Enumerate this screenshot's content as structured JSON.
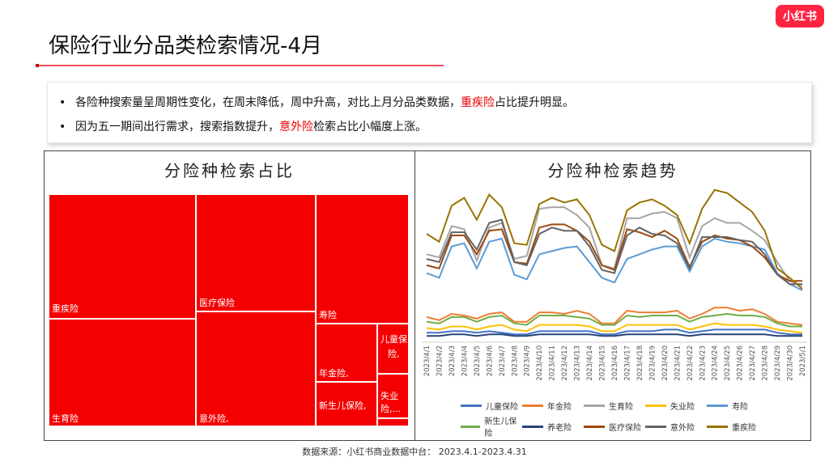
{
  "title": "保险行业分品类检索情况-4月",
  "logo": "小红书",
  "bullets": {
    "b1": {
      "pre": "各险种搜索量呈周期性变化，在周末降低，周中升高，对比上月分品类数据，",
      "hl": "重疾险",
      "post": "占比提升明显。"
    },
    "b2": {
      "pre": "因为五一期间出行需求，搜索指数提升，",
      "hl": "意外险",
      "post": "检索占比小幅度上涨。"
    }
  },
  "treemap": {
    "title": "分险种检索占比",
    "labels": {
      "zhongji": "重疾险",
      "shengyu": "生育险",
      "yiliao": "医疗保险",
      "yiwai": "意外险,",
      "shou": "寿险",
      "nianjin": "年金险,",
      "xinshenger": "新生儿保险,",
      "ertong1": "儿童保",
      "ertong2": "险,",
      "shiye1": "失业",
      "shiye2": "险,..."
    }
  },
  "chart_data": {
    "type": "line",
    "title": "分险种检索趋势",
    "x": [
      "2023/4/1",
      "2023/4/2",
      "2023/4/3",
      "2023/4/4",
      "2023/4/5",
      "2023/4/6",
      "2023/4/7",
      "2023/4/8",
      "2023/4/9",
      "2023/4/10",
      "2023/4/11",
      "2023/4/12",
      "2023/4/13",
      "2023/4/14",
      "2023/4/15",
      "2023/4/16",
      "2023/4/17",
      "2023/4/18",
      "2023/4/19",
      "2023/4/20",
      "2023/4/21",
      "2023/4/22",
      "2023/4/23",
      "2023/4/24",
      "2023/4/25",
      "2023/4/26",
      "2023/4/27",
      "2023/4/28",
      "2023/4/29",
      "2023/4/30",
      "2023/5/1"
    ],
    "ylim": [
      0,
      100
    ],
    "series": [
      {
        "name": "儿童保险",
        "color": "#4472c4",
        "values": [
          5,
          5,
          6,
          6,
          5,
          6,
          5,
          4,
          4,
          6,
          6,
          6,
          6,
          6,
          4,
          4,
          6,
          6,
          6,
          7,
          7,
          5,
          6,
          7,
          7,
          7,
          7,
          7,
          5,
          4,
          4
        ]
      },
      {
        "name": "年金险",
        "color": "#ed7d31",
        "values": [
          15,
          13,
          17,
          16,
          14,
          17,
          18,
          12,
          12,
          18,
          18,
          17,
          19,
          17,
          11,
          11,
          19,
          18,
          18,
          18,
          19,
          14,
          17,
          21,
          21,
          19,
          20,
          17,
          12,
          11,
          10
        ]
      },
      {
        "name": "生育险",
        "color": "#a5a5a5",
        "values": [
          55,
          53,
          73,
          71,
          51,
          72,
          75,
          52,
          54,
          84,
          85,
          85,
          80,
          72,
          48,
          46,
          78,
          78,
          81,
          82,
          78,
          53,
          73,
          78,
          75,
          75,
          70,
          64,
          50,
          38,
          35
        ]
      },
      {
        "name": "失业险",
        "color": "#ffc000",
        "values": [
          8,
          7,
          9,
          9,
          7,
          9,
          10,
          7,
          6,
          10,
          10,
          10,
          10,
          9,
          6,
          6,
          10,
          10,
          10,
          10,
          10,
          7,
          9,
          11,
          10,
          10,
          10,
          9,
          7,
          6,
          5
        ]
      },
      {
        "name": "寿险",
        "color": "#5b9bd5",
        "values": [
          43,
          40,
          60,
          62,
          46,
          63,
          65,
          42,
          39,
          55,
          57,
          59,
          60,
          50,
          40,
          37,
          52,
          55,
          58,
          60,
          60,
          44,
          60,
          65,
          63,
          62,
          60,
          58,
          43,
          36,
          32
        ]
      },
      {
        "name": "新生儿保险",
        "color": "#70ad47",
        "values": [
          12,
          11,
          15,
          15,
          12,
          15,
          16,
          11,
          10,
          16,
          16,
          16,
          15,
          14,
          10,
          10,
          16,
          15,
          16,
          16,
          16,
          12,
          15,
          16,
          17,
          16,
          16,
          15,
          11,
          9,
          9
        ]
      },
      {
        "name": "养老险",
        "color": "#264478",
        "values": [
          3,
          3,
          4,
          4,
          3,
          4,
          4,
          3,
          3,
          4,
          4,
          4,
          4,
          4,
          3,
          3,
          4,
          4,
          4,
          4,
          4,
          3,
          4,
          4,
          4,
          4,
          4,
          4,
          3,
          3,
          3
        ]
      },
      {
        "name": "医疗保险",
        "color": "#9e480e",
        "values": [
          48,
          46,
          67,
          67,
          55,
          70,
          71,
          50,
          49,
          72,
          74,
          74,
          70,
          63,
          48,
          45,
          71,
          69,
          66,
          70,
          65,
          47,
          63,
          67,
          65,
          64,
          60,
          53,
          42,
          38,
          38
        ]
      },
      {
        "name": "意外险",
        "color": "#636363",
        "values": [
          52,
          50,
          69,
          69,
          58,
          75,
          77,
          50,
          48,
          68,
          72,
          70,
          70,
          60,
          45,
          43,
          67,
          72,
          68,
          67,
          62,
          46,
          66,
          66,
          66,
          64,
          63,
          55,
          42,
          36,
          36
        ]
      },
      {
        "name": "重疾险",
        "color": "#997300",
        "values": [
          68,
          63,
          86,
          91,
          77,
          93,
          85,
          62,
          61,
          87,
          91,
          88,
          90,
          80,
          61,
          57,
          83,
          88,
          90,
          86,
          80,
          62,
          84,
          96,
          94,
          88,
          82,
          70,
          46,
          40,
          33
        ]
      }
    ]
  },
  "source": "数据来源：小红书商业数据中台：  2023.4.1-2023.4.31"
}
